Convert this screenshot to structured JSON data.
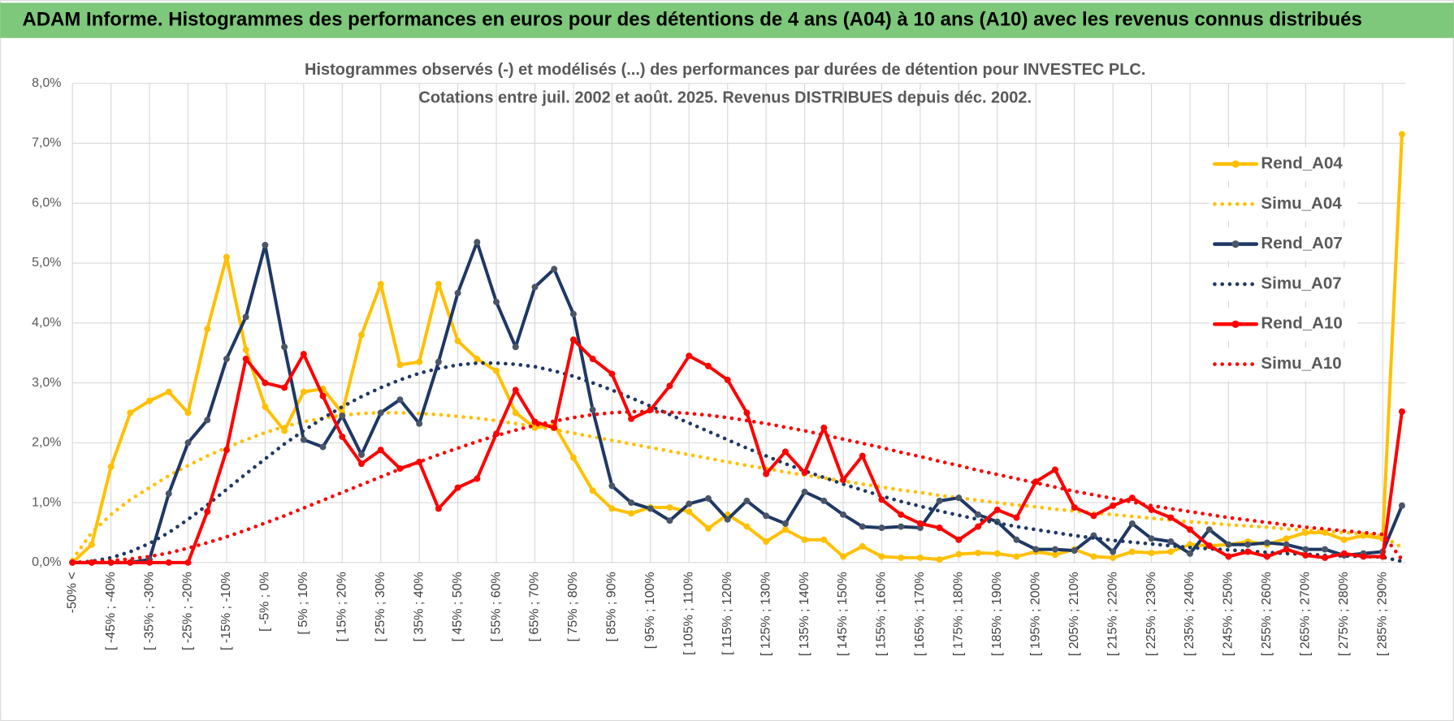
{
  "header": {
    "title": "ADAM Informe. Histogrammes des performances en euros pour des détentions de 4 ans (A04) à 10 ans (A10) avec les revenus connus distribués"
  },
  "chart_data": {
    "type": "line",
    "title": "Histogrammes observés (-) et modélisés (...) des performances par durées de détention pour INVESTEC PLC.",
    "subtitle": "Cotations entre juil. 2002 et août. 2025. Revenus DISTRIBUES depuis déc. 2002.",
    "categories": [
      "-50% <",
      null,
      "[ -45% ; -40%",
      null,
      "[ -35% ; -30%",
      null,
      "[ -25% ; -20%",
      null,
      "[ -15% ; -10%",
      null,
      "[ -5% ; 0%",
      null,
      "[ 5% ; 10%",
      null,
      "[ 15% ; 20%",
      null,
      "[ 25% ; 30%",
      null,
      "[ 35% ; 40%",
      null,
      "[ 45% ; 50%",
      null,
      "[ 55% ; 60%",
      null,
      "[ 65% ; 70%",
      null,
      "[ 75% ; 80%",
      null,
      "[ 85% ; 90%",
      null,
      "[ 95% ; 100%",
      null,
      "[ 105% ; 110%",
      null,
      "[ 115% ; 120%",
      null,
      "[ 125% ; 130%",
      null,
      "[ 135% ; 140%",
      null,
      "[ 145% ; 150%",
      null,
      "[ 155% ; 160%",
      null,
      "[ 165% ; 170%",
      null,
      "[ 175% ; 180%",
      null,
      "[ 185% ; 190%",
      null,
      "[ 195% ; 200%",
      null,
      "[ 205% ; 210%",
      null,
      "[ 215% ; 220%",
      null,
      "[ 225% ; 230%",
      null,
      "[ 235% ; 240%",
      null,
      "[ 245% ; 250%",
      null,
      "[ 255% ; 260%",
      null,
      "[ 265% ; 270%",
      null,
      "[ 275% ; 280%",
      null,
      "[ 285% ; 290%",
      null
    ],
    "ylim": [
      0,
      8
    ],
    "yticks": [
      {
        "value": 0,
        "label": "0,0%"
      },
      {
        "value": 1,
        "label": "1,0%"
      },
      {
        "value": 2,
        "label": "2,0%"
      },
      {
        "value": 3,
        "label": "3,0%"
      },
      {
        "value": 4,
        "label": "4,0%"
      },
      {
        "value": 5,
        "label": "5,0%"
      },
      {
        "value": 6,
        "label": "6,0%"
      },
      {
        "value": 7,
        "label": "7,0%"
      },
      {
        "value": 8,
        "label": "8,0%"
      }
    ],
    "grid": true,
    "legend": "right",
    "series": [
      {
        "name": "Rend_A04",
        "color": "#FFC000",
        "style": "solid",
        "markers": true,
        "values": [
          0,
          0.3,
          1.6,
          2.5,
          2.7,
          2.85,
          2.5,
          3.9,
          5.1,
          3.55,
          2.6,
          2.2,
          2.85,
          2.9,
          2.5,
          3.8,
          4.65,
          3.3,
          3.35,
          4.65,
          3.7,
          3.4,
          3.2,
          2.5,
          2.25,
          2.3,
          1.75,
          1.2,
          0.9,
          0.82,
          0.92,
          0.92,
          0.85,
          0.57,
          0.8,
          0.6,
          0.35,
          0.55,
          0.38,
          0.38,
          0.1,
          0.27,
          0.1,
          0.08,
          0.08,
          0.05,
          0.14,
          0.16,
          0.15,
          0.1,
          0.18,
          0.13,
          0.22,
          0.1,
          0.08,
          0.18,
          0.16,
          0.18,
          0.3,
          0.28,
          0.3,
          0.35,
          0.3,
          0.4,
          0.5,
          0.5,
          0.38,
          0.45,
          0.4,
          7.15
        ]
      },
      {
        "name": "Simu_A04",
        "color": "#FFC000",
        "style": "dotted",
        "markers": false,
        "values": [
          0.05,
          0.5,
          0.8,
          1.05,
          1.25,
          1.45,
          1.62,
          1.78,
          1.92,
          2.05,
          2.17,
          2.27,
          2.35,
          2.41,
          2.46,
          2.49,
          2.5,
          2.5,
          2.49,
          2.47,
          2.44,
          2.41,
          2.37,
          2.32,
          2.27,
          2.22,
          2.16,
          2.1,
          2.04,
          1.98,
          1.92,
          1.86,
          1.8,
          1.74,
          1.68,
          1.62,
          1.57,
          1.51,
          1.46,
          1.41,
          1.36,
          1.31,
          1.26,
          1.21,
          1.17,
          1.12,
          1.08,
          1.04,
          1.0,
          0.96,
          0.93,
          0.89,
          0.86,
          0.83,
          0.8,
          0.77,
          0.74,
          0.71,
          0.68,
          0.66,
          0.63,
          0.61,
          0.59,
          0.56,
          0.54,
          0.52,
          0.5,
          0.48,
          0.44,
          0.25
        ]
      },
      {
        "name": "Rend_A07",
        "color": "#1F3864",
        "marker_color": "#4A5668",
        "style": "solid",
        "markers": true,
        "values": [
          0,
          0,
          0,
          0,
          0.05,
          1.15,
          2.0,
          2.38,
          3.4,
          4.1,
          5.3,
          3.6,
          2.05,
          1.93,
          2.45,
          1.8,
          2.5,
          2.72,
          2.32,
          3.35,
          4.5,
          5.35,
          4.35,
          3.6,
          4.6,
          4.9,
          4.15,
          2.55,
          1.28,
          1.0,
          0.9,
          0.7,
          0.98,
          1.07,
          0.72,
          1.03,
          0.78,
          0.65,
          1.18,
          1.03,
          0.8,
          0.6,
          0.58,
          0.6,
          0.58,
          1.03,
          1.08,
          0.8,
          0.68,
          0.38,
          0.22,
          0.22,
          0.2,
          0.45,
          0.18,
          0.65,
          0.4,
          0.35,
          0.15,
          0.55,
          0.3,
          0.3,
          0.33,
          0.3,
          0.22,
          0.22,
          0.12,
          0.15,
          0.18,
          0.95
        ]
      },
      {
        "name": "Simu_A07",
        "color": "#1F3864",
        "style": "dotted",
        "markers": false,
        "values": [
          0,
          0.02,
          0.08,
          0.18,
          0.32,
          0.5,
          0.72,
          0.96,
          1.22,
          1.48,
          1.73,
          1.98,
          2.2,
          2.41,
          2.6,
          2.77,
          2.92,
          3.05,
          3.16,
          3.24,
          3.3,
          3.33,
          3.33,
          3.31,
          3.27,
          3.2,
          3.11,
          3.0,
          2.88,
          2.75,
          2.61,
          2.47,
          2.33,
          2.19,
          2.05,
          1.91,
          1.78,
          1.65,
          1.53,
          1.42,
          1.31,
          1.21,
          1.11,
          1.02,
          0.94,
          0.86,
          0.79,
          0.72,
          0.66,
          0.6,
          0.55,
          0.5,
          0.45,
          0.41,
          0.37,
          0.34,
          0.31,
          0.28,
          0.25,
          0.23,
          0.21,
          0.19,
          0.17,
          0.15,
          0.14,
          0.12,
          0.11,
          0.1,
          0.09,
          0.02
        ]
      },
      {
        "name": "Rend_A10",
        "color": "#FF0000",
        "style": "solid",
        "markers": true,
        "values": [
          0,
          0,
          0,
          0,
          0,
          0,
          0,
          0.85,
          1.88,
          3.4,
          3.0,
          2.92,
          3.48,
          2.78,
          2.1,
          1.65,
          1.88,
          1.57,
          1.68,
          0.9,
          1.25,
          1.4,
          2.15,
          2.88,
          2.35,
          2.25,
          3.72,
          3.4,
          3.15,
          2.4,
          2.55,
          2.95,
          3.45,
          3.28,
          3.05,
          2.5,
          1.48,
          1.85,
          1.5,
          2.25,
          1.38,
          1.78,
          1.05,
          0.8,
          0.65,
          0.58,
          0.38,
          0.6,
          0.88,
          0.75,
          1.35,
          1.55,
          0.92,
          0.78,
          0.95,
          1.08,
          0.88,
          0.75,
          0.55,
          0.28,
          0.1,
          0.18,
          0.1,
          0.22,
          0.12,
          0.08,
          0.15,
          0.1,
          0.1,
          2.52
        ]
      },
      {
        "name": "Simu_A10",
        "color": "#FF0000",
        "style": "dotted",
        "markers": false,
        "values": [
          0,
          0.01,
          0.03,
          0.06,
          0.1,
          0.16,
          0.24,
          0.33,
          0.43,
          0.54,
          0.66,
          0.78,
          0.91,
          1.04,
          1.17,
          1.3,
          1.43,
          1.56,
          1.68,
          1.8,
          1.91,
          2.02,
          2.12,
          2.21,
          2.29,
          2.36,
          2.42,
          2.47,
          2.5,
          2.52,
          2.52,
          2.51,
          2.49,
          2.46,
          2.42,
          2.37,
          2.32,
          2.26,
          2.2,
          2.13,
          2.06,
          1.99,
          1.92,
          1.84,
          1.77,
          1.69,
          1.62,
          1.54,
          1.47,
          1.4,
          1.33,
          1.26,
          1.19,
          1.13,
          1.07,
          1.01,
          0.95,
          0.9,
          0.85,
          0.8,
          0.75,
          0.71,
          0.67,
          0.63,
          0.59,
          0.56,
          0.53,
          0.5,
          0.47,
          0.05
        ]
      }
    ]
  }
}
